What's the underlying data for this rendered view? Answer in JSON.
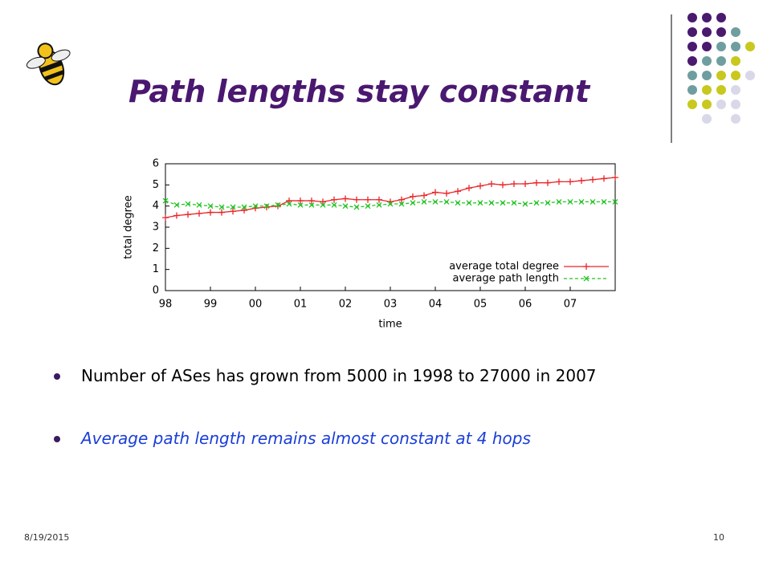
{
  "slide": {
    "title": "Path lengths stay constant",
    "bullets": [
      "Number of ASes has grown from 5000 in 1998 to 27000 in 2007",
      "Average path length remains almost constant at 4 hops"
    ],
    "footer_date": "8/19/2015",
    "page_number": "10"
  },
  "chart_data": {
    "type": "line",
    "xlabel": "time",
    "ylabel": "total degree",
    "x": [
      1998,
      1998.25,
      1998.5,
      1998.75,
      1999,
      1999.25,
      1999.5,
      1999.75,
      2000,
      2000.25,
      2000.5,
      2000.75,
      2001,
      2001.25,
      2001.5,
      2001.75,
      2002,
      2002.25,
      2002.5,
      2002.75,
      2003,
      2003.25,
      2003.5,
      2003.75,
      2004,
      2004.25,
      2004.5,
      2004.75,
      2005,
      2005.25,
      2005.5,
      2005.75,
      2006,
      2006.25,
      2006.5,
      2006.75,
      2007,
      2007.25,
      2007.5,
      2007.75,
      2008
    ],
    "series": [
      {
        "name": "average total degree",
        "color": "#e8262a",
        "marker": "plus",
        "values": [
          3.45,
          3.55,
          3.6,
          3.65,
          3.7,
          3.7,
          3.75,
          3.8,
          3.9,
          3.95,
          4.0,
          4.25,
          4.25,
          4.25,
          4.2,
          4.3,
          4.35,
          4.3,
          4.3,
          4.3,
          4.2,
          4.3,
          4.45,
          4.5,
          4.65,
          4.6,
          4.7,
          4.85,
          4.95,
          5.05,
          5.0,
          5.05,
          5.05,
          5.1,
          5.1,
          5.15,
          5.15,
          5.2,
          5.25,
          5.3,
          5.35
        ]
      },
      {
        "name": "average path length",
        "color": "#22c422",
        "marker": "cross",
        "dashed": true,
        "values": [
          4.25,
          4.05,
          4.1,
          4.05,
          4.0,
          3.95,
          3.95,
          3.95,
          4.0,
          4.0,
          4.05,
          4.1,
          4.05,
          4.05,
          4.05,
          4.05,
          4.0,
          3.95,
          4.0,
          4.05,
          4.1,
          4.1,
          4.15,
          4.2,
          4.2,
          4.2,
          4.15,
          4.15,
          4.15,
          4.15,
          4.15,
          4.15,
          4.1,
          4.15,
          4.15,
          4.2,
          4.2,
          4.2,
          4.2,
          4.2,
          4.2
        ]
      }
    ],
    "xlim": [
      1998,
      2008
    ],
    "xticks": [
      {
        "value": 1998,
        "label": "98"
      },
      {
        "value": 1999,
        "label": "99"
      },
      {
        "value": 2000,
        "label": "00"
      },
      {
        "value": 2001,
        "label": "01"
      },
      {
        "value": 2002,
        "label": "02"
      },
      {
        "value": 2003,
        "label": "03"
      },
      {
        "value": 2004,
        "label": "04"
      },
      {
        "value": 2005,
        "label": "05"
      },
      {
        "value": 2006,
        "label": "06"
      },
      {
        "value": 2007,
        "label": "07"
      }
    ],
    "ylim": [
      0,
      6
    ],
    "yticks": [
      0,
      1,
      2,
      3,
      4,
      5,
      6
    ],
    "grid": false,
    "legend": "lower right"
  }
}
